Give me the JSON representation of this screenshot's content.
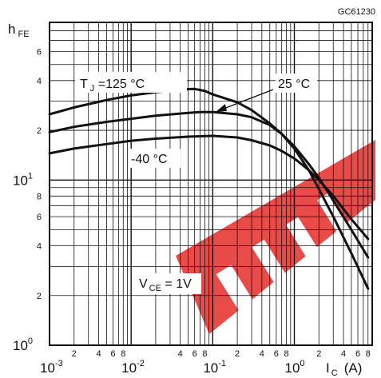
{
  "chart_data": {
    "type": "line",
    "code": "GC61230",
    "ylabel": {
      "main": "h",
      "sub": "FE"
    },
    "xlabel": {
      "main": "I",
      "sub": "C",
      "unit": "(A)"
    },
    "x_scale": "log",
    "y_scale": "log",
    "xlim": [
      0.001,
      9
    ],
    "ylim": [
      1,
      90
    ],
    "y_ticks": [
      {
        "v": 1,
        "base": "10",
        "exp": "0",
        "major": true
      },
      {
        "v": 2,
        "t": "2"
      },
      {
        "v": 4,
        "t": "4"
      },
      {
        "v": 6,
        "t": "6"
      },
      {
        "v": 8,
        "t": "8"
      },
      {
        "v": 10,
        "base": "10",
        "exp": "1",
        "major": true
      },
      {
        "v": 20,
        "t": "2"
      },
      {
        "v": 40,
        "t": "4"
      },
      {
        "v": 60,
        "t": "6"
      }
    ],
    "x_ticks": [
      {
        "v": 0.001,
        "base": "10",
        "exp": "-3",
        "major": true
      },
      {
        "v": 0.002,
        "t": "2"
      },
      {
        "v": 0.004,
        "t": "4"
      },
      {
        "v": 0.006,
        "t": "6"
      },
      {
        "v": 0.008,
        "t": "8"
      },
      {
        "v": 0.01,
        "base": "10",
        "exp": "-2",
        "major": true
      },
      {
        "v": 0.04,
        "t": "4"
      },
      {
        "v": 0.06,
        "t": "6"
      },
      {
        "v": 0.08,
        "t": "8"
      },
      {
        "v": 0.1,
        "base": "10",
        "exp": "-1",
        "major": true
      },
      {
        "v": 0.2,
        "t": "2"
      },
      {
        "v": 0.4,
        "t": "4"
      },
      {
        "v": 0.6,
        "t": "6"
      },
      {
        "v": 0.8,
        "t": "8"
      },
      {
        "v": 1,
        "base": "10",
        "exp": "0",
        "major": true
      },
      {
        "v": 2,
        "t": "2"
      },
      {
        "v": 4,
        "t": "4"
      },
      {
        "v": 6,
        "t": "6"
      },
      {
        "v": 8,
        "t": "8"
      }
    ],
    "series": [
      {
        "name": "T_J = 125 °C",
        "points": [
          [
            0.001,
            25
          ],
          [
            0.002,
            27.5
          ],
          [
            0.005,
            30.5
          ],
          [
            0.01,
            32.5
          ],
          [
            0.02,
            34
          ],
          [
            0.05,
            35.5
          ],
          [
            0.06,
            35.6
          ],
          [
            0.08,
            34.6
          ],
          [
            0.1,
            33
          ],
          [
            0.2,
            29.5
          ],
          [
            0.3,
            26.5
          ],
          [
            0.5,
            22
          ],
          [
            0.7,
            19
          ],
          [
            1,
            15.5
          ],
          [
            1.5,
            11.5
          ],
          [
            2,
            8.8
          ],
          [
            3,
            6
          ],
          [
            5,
            3.6
          ],
          [
            8,
            2.2
          ]
        ]
      },
      {
        "name": "25 °C",
        "points": [
          [
            0.001,
            19.5
          ],
          [
            0.002,
            21
          ],
          [
            0.005,
            22.5
          ],
          [
            0.01,
            23.5
          ],
          [
            0.02,
            24.5
          ],
          [
            0.05,
            25.5
          ],
          [
            0.07,
            25.8
          ],
          [
            0.1,
            25.8
          ],
          [
            0.2,
            25
          ],
          [
            0.3,
            24
          ],
          [
            0.5,
            21.5
          ],
          [
            0.7,
            19
          ],
          [
            1,
            16
          ],
          [
            1.5,
            12.5
          ],
          [
            2,
            10.3
          ],
          [
            3,
            7.5
          ],
          [
            5,
            5
          ],
          [
            8,
            3.4
          ]
        ]
      },
      {
        "name": "-40 °C",
        "points": [
          [
            0.001,
            14.5
          ],
          [
            0.002,
            15.5
          ],
          [
            0.005,
            16.5
          ],
          [
            0.01,
            17.3
          ],
          [
            0.02,
            17.8
          ],
          [
            0.05,
            18.3
          ],
          [
            0.1,
            18.5
          ],
          [
            0.2,
            18.1
          ],
          [
            0.3,
            17.4
          ],
          [
            0.5,
            16.2
          ],
          [
            0.7,
            15
          ],
          [
            1,
            13.5
          ],
          [
            1.5,
            11.5
          ],
          [
            2,
            10
          ],
          [
            3,
            8
          ],
          [
            5,
            5.8
          ],
          [
            8,
            4.4
          ]
        ]
      }
    ],
    "labels": {
      "tj_main": "T",
      "tj_sub": "J",
      "tj_rest": " =125 °C",
      "t25": "25 °C",
      "tm40": "-40 °C",
      "vce_main": "V",
      "vce_sub": "CE",
      "vce_rest": " = 1V"
    },
    "watermark_color": "#e53935",
    "line_color": "#111111",
    "grid": true
  }
}
